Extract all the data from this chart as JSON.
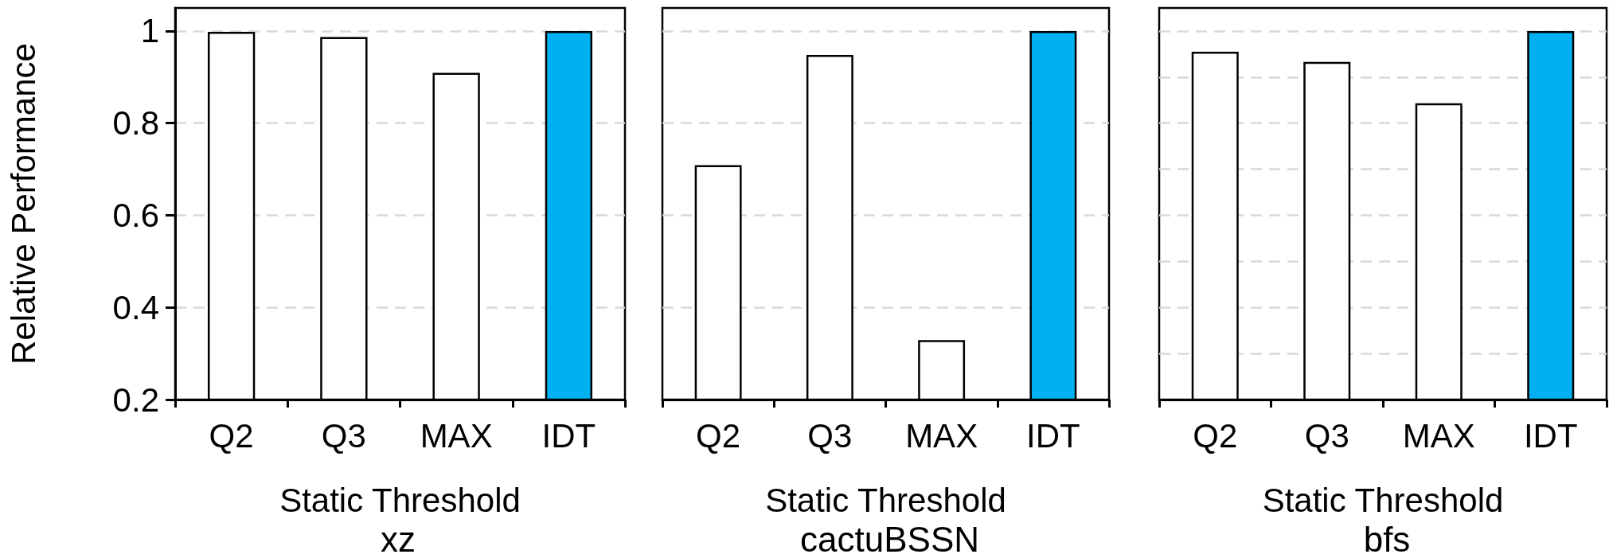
{
  "chart_data": [
    {
      "type": "bar",
      "title": "xz",
      "xlabel": "Static Threshold",
      "ylabel": "Relative Performance",
      "categories": [
        "Q2",
        "Q3",
        "MAX",
        "IDT"
      ],
      "values": [
        0.998,
        0.987,
        0.909,
        1.0
      ],
      "colors": [
        "#ffffff",
        "#ffffff",
        "#ffffff",
        "#00b0f0"
      ],
      "ylim": [
        0.2,
        1.05
      ],
      "yticks": [
        0.2,
        0.4,
        0.6,
        0.8,
        1
      ],
      "grid": "y"
    },
    {
      "type": "bar",
      "title": "cactuBSSN",
      "xlabel": "Static Threshold",
      "categories": [
        "Q2",
        "Q3",
        "MAX",
        "IDT"
      ],
      "values": [
        0.709,
        0.948,
        0.329,
        1.0
      ],
      "colors": [
        "#ffffff",
        "#ffffff",
        "#ffffff",
        "#00b0f0"
      ],
      "ylim": [
        0.2,
        1.05
      ],
      "yticks": [
        0.2,
        0.4,
        0.6,
        0.8,
        1
      ],
      "grid": "y",
      "tick_labels": "x"
    },
    {
      "type": "bar",
      "title": "bfs",
      "xlabel": "Static Threshold",
      "categories": [
        "Q2",
        "Q3",
        "MAX",
        "IDT"
      ],
      "values": [
        0.955,
        0.933,
        0.843,
        1.0
      ],
      "colors": [
        "#ffffff",
        "#ffffff",
        "#ffffff",
        "#00b0f0"
      ],
      "ylim": [
        0.2,
        1.05
      ],
      "yticks": [
        0.2,
        0.3,
        0.4,
        0.5,
        0.6,
        0.7,
        0.8,
        0.9,
        1
      ],
      "grid": "y",
      "tick_labels": "x"
    }
  ]
}
